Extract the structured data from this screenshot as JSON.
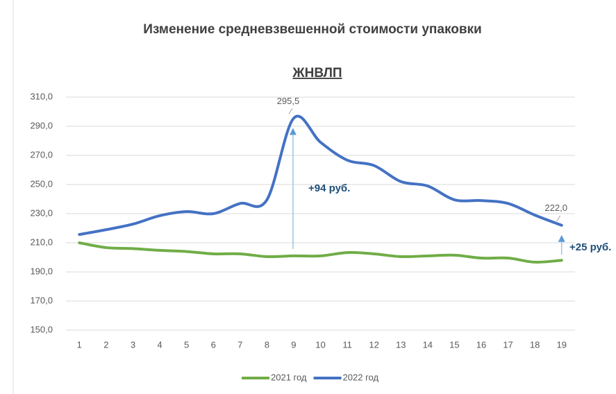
{
  "chart_data": {
    "type": "line",
    "title": "Изменение средневзвешенной стоимости упаковки",
    "subtitle": "ЖНВЛП",
    "categories": [
      "1",
      "2",
      "3",
      "4",
      "5",
      "6",
      "7",
      "8",
      "9",
      "10",
      "11",
      "12",
      "13",
      "14",
      "15",
      "16",
      "17",
      "18",
      "19"
    ],
    "series": [
      {
        "name": "2021 год",
        "color": "#70ad47",
        "values": [
          210,
          206.7,
          206,
          204.8,
          204,
          202.4,
          202.4,
          200.5,
          201,
          201,
          203.3,
          202.4,
          200.5,
          201,
          201.5,
          199.5,
          199.5,
          196.7,
          198
        ]
      },
      {
        "name": "2022 год",
        "color": "#4472c4",
        "values": [
          215.7,
          219,
          222.8,
          228.6,
          231.4,
          230,
          237,
          239.5,
          295.5,
          279,
          266.7,
          263,
          252,
          249,
          239.5,
          239,
          237,
          229,
          222.0
        ],
        "value_labels": [
          null,
          null,
          null,
          null,
          null,
          null,
          null,
          null,
          "295,5",
          null,
          null,
          null,
          null,
          null,
          null,
          null,
          null,
          null,
          "222,0"
        ]
      }
    ],
    "ylim": [
      150,
      310
    ],
    "yticks": [
      {
        "value": 150,
        "label": "150,0"
      },
      {
        "value": 170,
        "label": "170,0"
      },
      {
        "value": 190,
        "label": "190,0"
      },
      {
        "value": 210,
        "label": "210,0"
      },
      {
        "value": 230,
        "label": "230,0"
      },
      {
        "value": 250,
        "label": "250,0"
      },
      {
        "value": 270,
        "label": "270,0"
      },
      {
        "value": 290,
        "label": "290,0"
      },
      {
        "value": 310,
        "label": "310,0"
      }
    ],
    "grid": true,
    "legend": "bottom",
    "annotations": [
      "+94 руб.",
      "+25 руб."
    ]
  }
}
